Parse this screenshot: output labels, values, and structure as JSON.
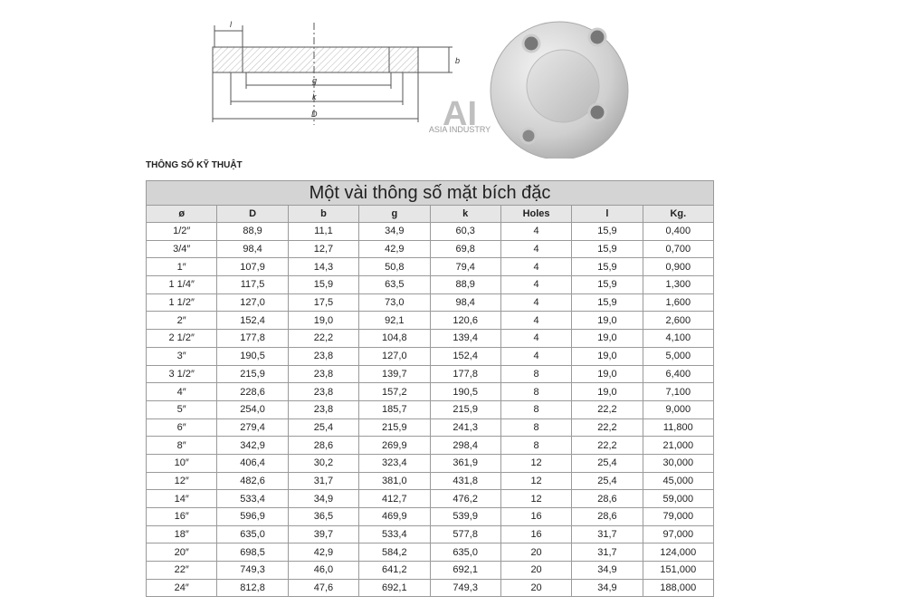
{
  "diagram": {
    "labels": [
      "l",
      "b",
      "g",
      "k",
      "D"
    ]
  },
  "watermark": {
    "logo": "AI",
    "name": "ASIA INDUSTRY"
  },
  "heading": "THÔNG SỐ KỸ THUẬT",
  "table": {
    "title": "Một vài thông số mặt bích đặc",
    "headers": [
      "ø",
      "D",
      "b",
      "g",
      "k",
      "Holes",
      "l",
      "Kg."
    ],
    "rows": [
      [
        "1/2″",
        "88,9",
        "11,1",
        "34,9",
        "60,3",
        "4",
        "15,9",
        "0,400"
      ],
      [
        "3/4″",
        "98,4",
        "12,7",
        "42,9",
        "69,8",
        "4",
        "15,9",
        "0,700"
      ],
      [
        "1″",
        "107,9",
        "14,3",
        "50,8",
        "79,4",
        "4",
        "15,9",
        "0,900"
      ],
      [
        "1 1/4″",
        "117,5",
        "15,9",
        "63,5",
        "88,9",
        "4",
        "15,9",
        "1,300"
      ],
      [
        "1 1/2″",
        "127,0",
        "17,5",
        "73,0",
        "98,4",
        "4",
        "15,9",
        "1,600"
      ],
      [
        "2″",
        "152,4",
        "19,0",
        "92,1",
        "120,6",
        "4",
        "19,0",
        "2,600"
      ],
      [
        "2 1/2″",
        "177,8",
        "22,2",
        "104,8",
        "139,4",
        "4",
        "19,0",
        "4,100"
      ],
      [
        "3″",
        "190,5",
        "23,8",
        "127,0",
        "152,4",
        "4",
        "19,0",
        "5,000"
      ],
      [
        "3 1/2″",
        "215,9",
        "23,8",
        "139,7",
        "177,8",
        "8",
        "19,0",
        "6,400"
      ],
      [
        "4″",
        "228,6",
        "23,8",
        "157,2",
        "190,5",
        "8",
        "19,0",
        "7,100"
      ],
      [
        "5″",
        "254,0",
        "23,8",
        "185,7",
        "215,9",
        "8",
        "22,2",
        "9,000"
      ],
      [
        "6″",
        "279,4",
        "25,4",
        "215,9",
        "241,3",
        "8",
        "22,2",
        "11,800"
      ],
      [
        "8″",
        "342,9",
        "28,6",
        "269,9",
        "298,4",
        "8",
        "22,2",
        "21,000"
      ],
      [
        "10″",
        "406,4",
        "30,2",
        "323,4",
        "361,9",
        "12",
        "25,4",
        "30,000"
      ],
      [
        "12″",
        "482,6",
        "31,7",
        "381,0",
        "431,8",
        "12",
        "25,4",
        "45,000"
      ],
      [
        "14″",
        "533,4",
        "34,9",
        "412,7",
        "476,2",
        "12",
        "28,6",
        "59,000"
      ],
      [
        "16″",
        "596,9",
        "36,5",
        "469,9",
        "539,9",
        "16",
        "28,6",
        "79,000"
      ],
      [
        "18″",
        "635,0",
        "39,7",
        "533,4",
        "577,8",
        "16",
        "31,7",
        "97,000"
      ],
      [
        "20″",
        "698,5",
        "42,9",
        "584,2",
        "635,0",
        "20",
        "31,7",
        "124,000"
      ],
      [
        "22″",
        "749,3",
        "46,0",
        "641,2",
        "692,1",
        "20",
        "34,9",
        "151,000"
      ],
      [
        "24″",
        "812,8",
        "47,6",
        "692,1",
        "749,3",
        "20",
        "34,9",
        "188,000"
      ]
    ]
  }
}
